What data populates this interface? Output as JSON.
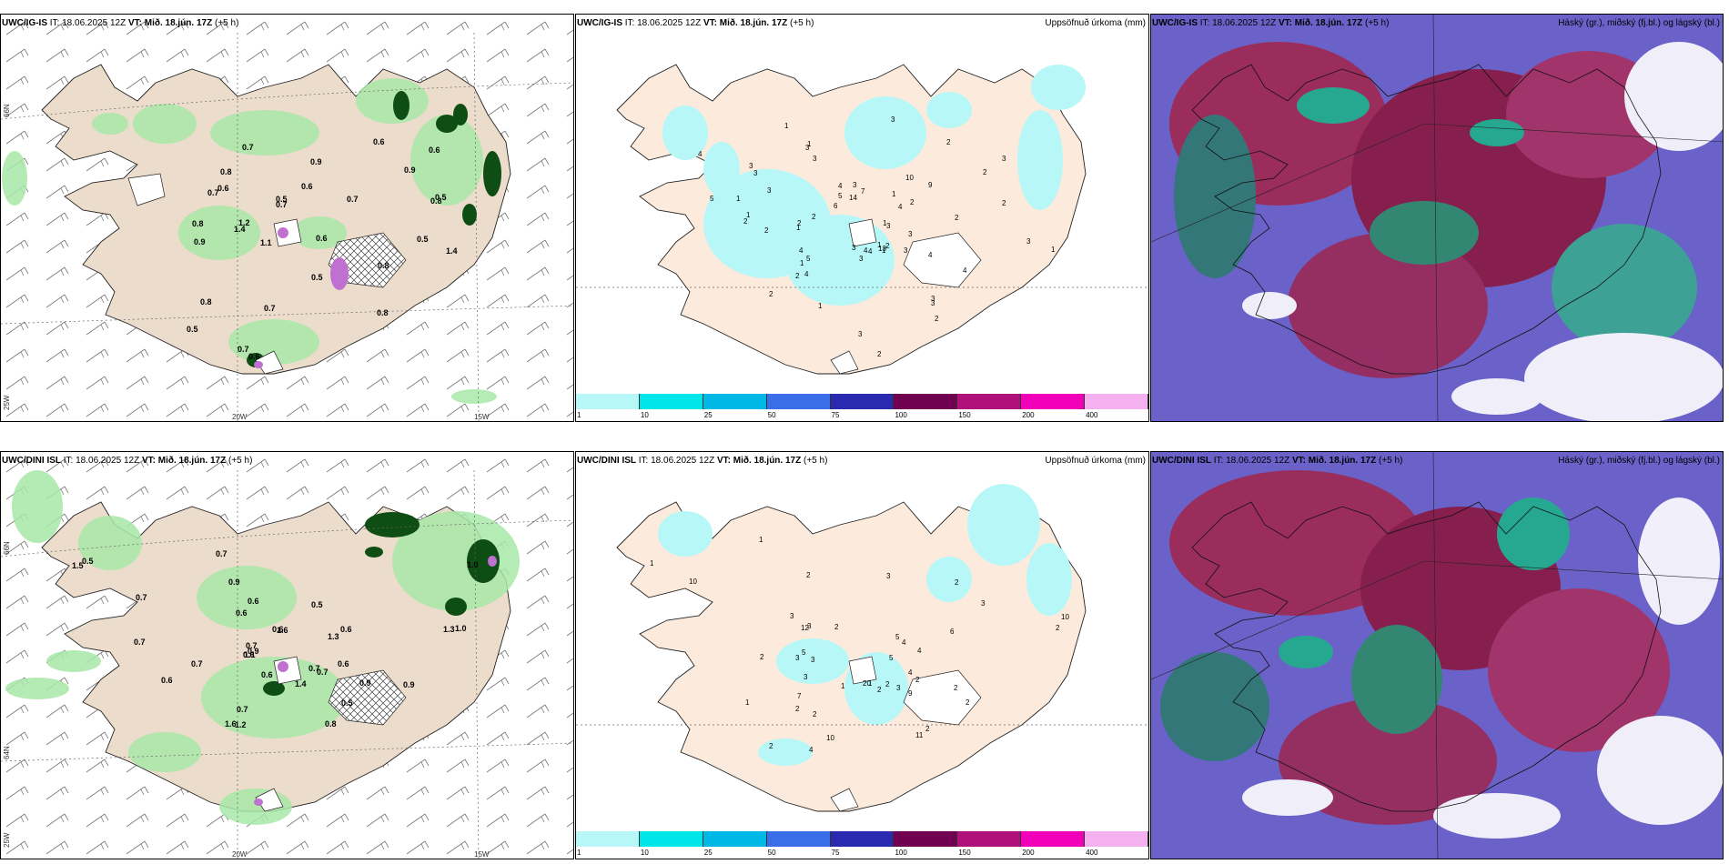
{
  "rows": [
    {
      "model": "UWC/IG-IS",
      "it_label": "IT:",
      "it_value": "18.06.2025 12Z",
      "vt_label": "VT:",
      "vt_value": "Mið. 18.jún. 17Z",
      "lead": "(+5 h)"
    },
    {
      "model": "UWC/DINI ISL",
      "it_label": "IT:",
      "it_value": "18.06.2025 12Z",
      "vt_label": "VT:",
      "vt_value": "Mið. 18.jún. 17Z",
      "lead": "(+5 h)"
    }
  ],
  "precip_title": "Uppsöfnuð úrkoma (mm)",
  "cloud_title": "Háský (gr.), miðský (fj.bl.) og lágský (bl.)",
  "axes": {
    "lon_20": "20W",
    "lon_15": "15W",
    "lat_66": "66N",
    "lat_64": "64N",
    "lat_25": "25W"
  },
  "colorbar": {
    "ticks": [
      "1",
      "10",
      "25",
      "50",
      "75",
      "100",
      "150",
      "200",
      "400"
    ],
    "colors": [
      "#b8f7f7",
      "#00e5e8",
      "#00b8e6",
      "#3a6ee8",
      "#2a2ab0",
      "#700050",
      "#b0107a",
      "#f000b8",
      "#f5b0f0"
    ]
  },
  "map_values": {
    "top_left": [
      "0.7",
      "0.7",
      "0.9",
      "0.6",
      "0.9",
      "0.5",
      "0.5",
      "1.1",
      "0.5",
      "0.7",
      "0.7",
      "0.5",
      "1.4",
      "0.8",
      "0.7",
      "0.8",
      "0.6",
      "0.5",
      "0.6",
      "0.7",
      "0.6",
      "0.8",
      "1.4",
      "0.8",
      "0.8",
      "0.9",
      "0.6",
      "0.8",
      "1.2",
      "0.6"
    ],
    "top_mid": [
      "3",
      "3",
      "3",
      "1",
      "2",
      "2",
      "3",
      "4",
      "2",
      "2",
      "5",
      "1",
      "3",
      "2",
      "1",
      "4",
      "6",
      "3",
      "3",
      "2",
      "3",
      "3",
      "13",
      "4",
      "3",
      "2",
      "1",
      "2",
      "14",
      "10",
      "5",
      "7",
      "4",
      "1",
      "1",
      "9",
      "1",
      "2",
      "3",
      "4",
      "3",
      "3",
      "4",
      "2",
      "5",
      "2",
      "3",
      "4",
      "3",
      "1",
      "1",
      "2",
      "4",
      "3",
      "1",
      "2",
      "3",
      "1",
      "4",
      "2",
      "1"
    ],
    "bottom_left": [
      "0.7",
      "0.7",
      "0.5",
      "0.6",
      "1.0",
      "1.3",
      "0.9",
      "0.5",
      "0.8",
      "1.2",
      "0.7",
      "0.9",
      "0.7",
      "0.6",
      "0.7",
      "0.6",
      "0.5",
      "0.9",
      "0.7",
      "0.7",
      "0.6",
      "1.0",
      "0.9",
      "1.4",
      "0.6",
      "0.7",
      "1.6",
      "1.1",
      "0.6",
      "0.6",
      "1.6",
      "1.3",
      "1.5",
      "0.6"
    ],
    "bottom_mid": [
      "1",
      "1",
      "2",
      "2",
      "3",
      "4",
      "2",
      "1",
      "2",
      "2",
      "4",
      "3",
      "1",
      "5",
      "12",
      "4",
      "10",
      "2",
      "5",
      "2",
      "6",
      "10",
      "20",
      "9",
      "11",
      "10",
      "7",
      "2",
      "3",
      "2",
      "3",
      "5",
      "3",
      "2",
      "3",
      "3",
      "4",
      "2",
      "2",
      "2",
      "1",
      "2",
      "3"
    ]
  }
}
